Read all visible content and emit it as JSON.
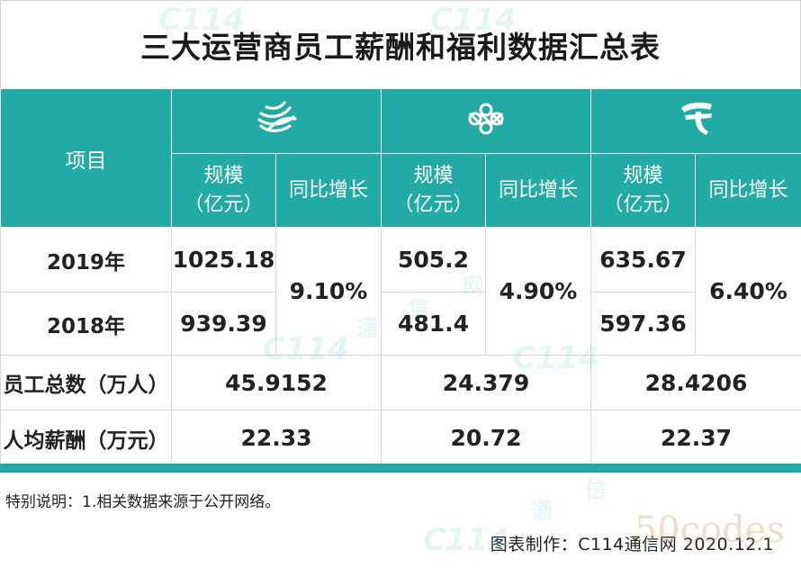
{
  "title": "三大运营商员工薪酬和福利数据汇总表",
  "header": {
    "item_label": "项目",
    "operators": [
      {
        "logo": "china-mobile-logo",
        "scale_label_1": "规模",
        "scale_label_2": "（亿元）",
        "growth_label": "同比增长"
      },
      {
        "logo": "china-unicom-logo",
        "scale_label_1": "规模",
        "scale_label_2": "（亿元）",
        "growth_label": "同比增长"
      },
      {
        "logo": "china-telecom-logo",
        "scale_label_1": "规模",
        "scale_label_2": "（亿元）",
        "growth_label": "同比增长"
      }
    ]
  },
  "rows": {
    "y2019": {
      "label": "2019年",
      "values": [
        "1025.18",
        "505.2",
        "635.67"
      ]
    },
    "y2018": {
      "label": "2018年",
      "values": [
        "939.39",
        "481.4",
        "597.36"
      ]
    },
    "growth": [
      "9.10%",
      "4.90%",
      "6.40%"
    ],
    "staff": {
      "label": "员工总数（万人）",
      "values": [
        "45.9152",
        "24.379",
        "28.4206"
      ]
    },
    "pay": {
      "label": "人均薪酬（万元）",
      "values": [
        "22.33",
        "20.72",
        "22.37"
      ]
    }
  },
  "note": "特别说明：1.相关数据来源于公开网络。",
  "credit": "图表制作：C114通信网  2020.12.1",
  "watermarks": {
    "logo_text": "C114",
    "char_1": "通",
    "char_2": "信",
    "char_3": "网",
    "code": "50codes"
  },
  "colors": {
    "header_bg": "#22aaa5",
    "header_text": "#ffffff"
  }
}
